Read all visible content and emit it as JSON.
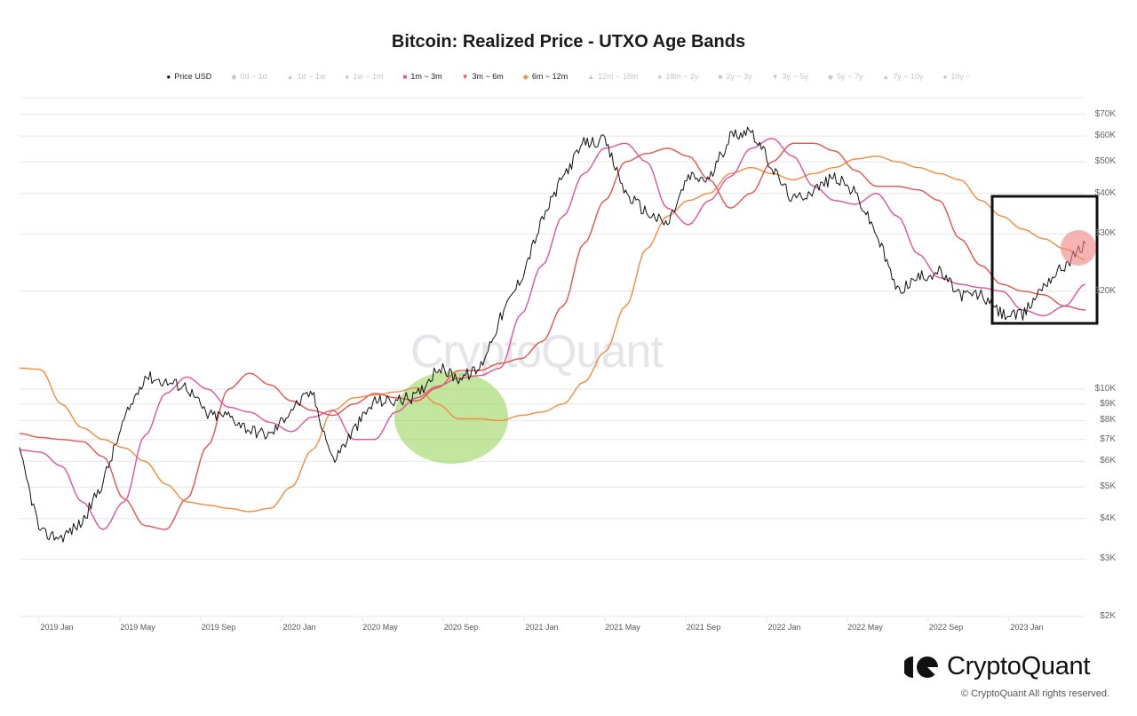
{
  "title": "Bitcoin: Realized Price - UTXO Age Bands",
  "legend": [
    {
      "label": "Price USD",
      "marker": "●",
      "color": "#111111",
      "active": true
    },
    {
      "label": "0d ~ 1d",
      "marker": "◆",
      "color": "#c4c4cc",
      "active": false
    },
    {
      "label": "1d ~ 1w",
      "marker": "▲",
      "color": "#c4c4cc",
      "active": false
    },
    {
      "label": "1w ~ 1m",
      "marker": "●",
      "color": "#c4c4cc",
      "active": false
    },
    {
      "label": "1m ~ 3m",
      "marker": "■",
      "color": "#e0529c",
      "active": true
    },
    {
      "label": "3m ~ 6m",
      "marker": "▼",
      "color": "#e5534b",
      "active": true
    },
    {
      "label": "6m ~ 12m",
      "marker": "◆",
      "color": "#f28b3c",
      "active": true
    },
    {
      "label": "12m ~ 18m",
      "marker": "▲",
      "color": "#c4c4cc",
      "active": false
    },
    {
      "label": "18m ~ 2y",
      "marker": "●",
      "color": "#c4c4cc",
      "active": false
    },
    {
      "label": "2y ~ 3y",
      "marker": "■",
      "color": "#c4c4cc",
      "active": false
    },
    {
      "label": "3y ~ 5y",
      "marker": "▼",
      "color": "#c4c4cc",
      "active": false
    },
    {
      "label": "5y ~ 7y",
      "marker": "◆",
      "color": "#c4c4cc",
      "active": false
    },
    {
      "label": "7y ~ 10y",
      "marker": "▲",
      "color": "#c4c4cc",
      "active": false
    },
    {
      "label": "10y ~",
      "marker": "●",
      "color": "#c4c4cc",
      "active": false
    }
  ],
  "y_axis": {
    "ticks": [
      {
        "label": "$70K",
        "value": 70000
      },
      {
        "label": "$60K",
        "value": 60000
      },
      {
        "label": "$50K",
        "value": 50000
      },
      {
        "label": "$40K",
        "value": 40000
      },
      {
        "label": "$30K",
        "value": 30000
      },
      {
        "label": "$20K",
        "value": 20000
      },
      {
        "label": "$10K",
        "value": 10000
      },
      {
        "label": "$9K",
        "value": 9000
      },
      {
        "label": "$8K",
        "value": 8000
      },
      {
        "label": "$7K",
        "value": 7000
      },
      {
        "label": "$6K",
        "value": 6000
      },
      {
        "label": "$5K",
        "value": 5000
      },
      {
        "label": "$4K",
        "value": 4000
      },
      {
        "label": "$3K",
        "value": 3000
      },
      {
        "label": "$2K",
        "value": 2000
      }
    ]
  },
  "x_axis": {
    "ticks": [
      "2019 Jan",
      "2019 May",
      "2019 Sep",
      "2020 Jan",
      "2020 May",
      "2020 Sep",
      "2021 Jan",
      "2021 May",
      "2021 Sep",
      "2022 Jan",
      "2022 May",
      "2022 Sep",
      "2023 Jan"
    ]
  },
  "watermark": "CryptoQuant",
  "footer": {
    "brand": "CryptoQuant",
    "copyright": "© CryptoQuant All rights reserved."
  },
  "annotations": [
    {
      "type": "ellipse",
      "color": "#8fd14f",
      "label": "green-highlight-2020"
    },
    {
      "type": "rectangle",
      "color": "#111111",
      "label": "black-box-2022-2023"
    },
    {
      "type": "circle",
      "color": "#f08080",
      "label": "red-highlight-price-near-6m12m"
    }
  ],
  "chart_data": {
    "type": "line",
    "title": "Bitcoin: Realized Price - UTXO Age Bands",
    "xlabel": "",
    "ylabel": "",
    "y_scale": "log",
    "ylim": [
      2000,
      75000
    ],
    "x": [
      "2018-12",
      "2019-01",
      "2019-02",
      "2019-03",
      "2019-04",
      "2019-05",
      "2019-06",
      "2019-07",
      "2019-08",
      "2019-09",
      "2019-10",
      "2019-11",
      "2019-12",
      "2020-01",
      "2020-02",
      "2020-03",
      "2020-04",
      "2020-05",
      "2020-06",
      "2020-07",
      "2020-08",
      "2020-09",
      "2020-10",
      "2020-11",
      "2020-12",
      "2021-01",
      "2021-02",
      "2021-03",
      "2021-04",
      "2021-05",
      "2021-06",
      "2021-07",
      "2021-08",
      "2021-09",
      "2021-10",
      "2021-11",
      "2021-12",
      "2022-01",
      "2022-02",
      "2022-03",
      "2022-04",
      "2022-05",
      "2022-06",
      "2022-07",
      "2022-08",
      "2022-09",
      "2022-10",
      "2022-11",
      "2022-12",
      "2023-01",
      "2023-02",
      "2023-03"
    ],
    "series": [
      {
        "name": "Price USD",
        "color": "#111111",
        "values": [
          6400,
          3600,
          3500,
          3900,
          5200,
          8000,
          11000,
          10500,
          10200,
          8300,
          8300,
          7500,
          7200,
          8700,
          9800,
          6000,
          7500,
          9200,
          9200,
          9500,
          11700,
          10800,
          11500,
          16500,
          22000,
          33000,
          45000,
          57000,
          58000,
          40000,
          35000,
          32000,
          45000,
          44000,
          60000,
          63000,
          48000,
          38000,
          41000,
          45000,
          40000,
          30000,
          20000,
          22000,
          23000,
          19500,
          19500,
          17000,
          16800,
          21000,
          24000,
          28000
        ]
      },
      {
        "name": "1m ~ 3m",
        "color": "#e0529c",
        "values": [
          6500,
          6400,
          5800,
          4500,
          3700,
          4500,
          7200,
          9700,
          10900,
          10000,
          8800,
          8500,
          7900,
          7400,
          8200,
          8600,
          7000,
          7000,
          8500,
          9400,
          10200,
          10800,
          11000,
          11600,
          17000,
          24000,
          34000,
          46000,
          55000,
          57000,
          50000,
          36000,
          32000,
          38000,
          45000,
          55000,
          59000,
          52000,
          42000,
          38000,
          37000,
          40000,
          34000,
          26000,
          22000,
          21000,
          20500,
          20000,
          17500,
          16800,
          18000,
          21000
        ]
      },
      {
        "name": "3m ~ 6m",
        "color": "#e5534b",
        "values": [
          7300,
          7100,
          7000,
          6900,
          6200,
          4600,
          3800,
          3700,
          4600,
          6700,
          10000,
          11200,
          10300,
          9200,
          8600,
          8300,
          9000,
          9700,
          9400,
          9200,
          10100,
          11400,
          11400,
          12000,
          12400,
          14000,
          18000,
          28000,
          38000,
          50000,
          53000,
          55000,
          52000,
          44000,
          36000,
          40000,
          50000,
          57000,
          57000,
          54000,
          47000,
          42000,
          42000,
          41000,
          38000,
          29000,
          24000,
          21000,
          20000,
          19500,
          18000,
          17500
        ]
      },
      {
        "name": "6m ~ 12m",
        "color": "#f28b3c",
        "values": [
          11600,
          11500,
          9000,
          7600,
          7000,
          6600,
          6000,
          5100,
          4500,
          4400,
          4300,
          4200,
          4300,
          5000,
          6500,
          8600,
          9400,
          9600,
          9800,
          10100,
          9000,
          8100,
          8100,
          8000,
          8300,
          8500,
          9000,
          10500,
          13000,
          18000,
          27000,
          34000,
          38000,
          40000,
          46000,
          48000,
          46000,
          44000,
          46000,
          48000,
          51000,
          52000,
          50000,
          48000,
          46000,
          44000,
          38000,
          34000,
          31000,
          29000,
          27000,
          25000
        ]
      }
    ]
  }
}
